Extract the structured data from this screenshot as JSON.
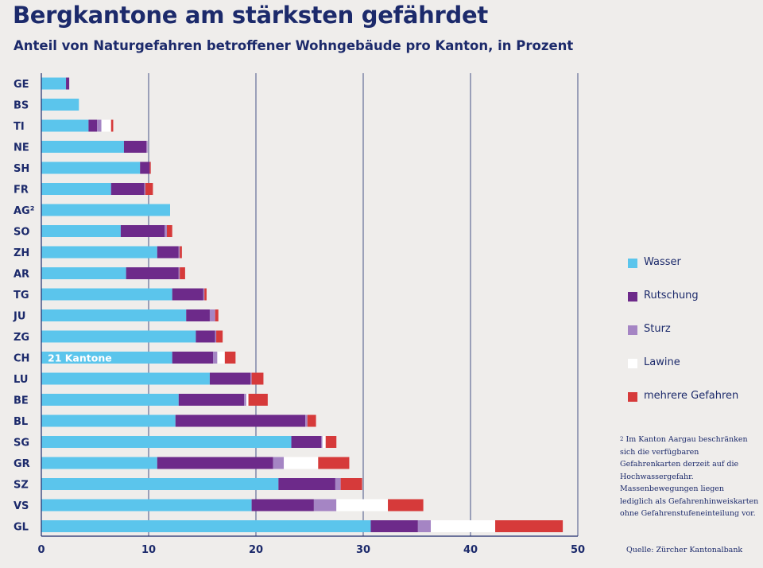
{
  "header": {
    "title": "Bergkantone am stärksten gefährdet",
    "subtitle": "Anteil von Naturgefahren betroffener Wohngebäude pro Kanton, in Prozent"
  },
  "colors": {
    "wasser": "#5bc5ec",
    "rutschung": "#6d2a8a",
    "sturz": "#a585c4",
    "lawine": "#ffffff",
    "mehrere": "#d63a3a",
    "text": "#1c2a6b",
    "grid": "#1c2a6b",
    "background": "#efedeb"
  },
  "legend": [
    {
      "key": "wasser",
      "label": "Wasser"
    },
    {
      "key": "rutschung",
      "label": "Rutschung"
    },
    {
      "key": "sturz",
      "label": "Sturz"
    },
    {
      "key": "lawine",
      "label": "Lawine"
    },
    {
      "key": "mehrere",
      "label": "mehrere Gefahren"
    }
  ],
  "footnote": {
    "mark": "2",
    "text": "Im Kanton Aargau beschränken sich die verfügbaren Gefahrenkarten derzeit auf die Hochwassergefahr. Massenbewegungen liegen lediglich als Gefahrenhinweiskarten ohne Gefahrenstufeneinteilung vor."
  },
  "source": "Quelle:  Zürcher Kantonalbank",
  "chart_data": {
    "type": "bar",
    "orientation": "horizontal",
    "stacked": true,
    "xlim": [
      0,
      50
    ],
    "xticks": [
      0,
      10,
      20,
      30,
      40,
      50
    ],
    "grid": true,
    "legend_position": "right",
    "categories": [
      "GE",
      "BS",
      "TI",
      "NE",
      "SH",
      "FR",
      "AG²",
      "SO",
      "ZH",
      "AR",
      "TG",
      "JU",
      "ZG",
      "CH",
      "LU",
      "BE",
      "BL",
      "SG",
      "GR",
      "SZ",
      "VS",
      "GL"
    ],
    "highlight_category": "CH",
    "highlight_label": "21 Kantone",
    "series": [
      {
        "name": "Wasser",
        "key": "wasser",
        "values": [
          2.3,
          3.5,
          4.4,
          7.7,
          9.2,
          6.5,
          12.0,
          7.4,
          10.8,
          7.9,
          12.2,
          13.5,
          14.4,
          12.2,
          15.7,
          12.8,
          12.5,
          23.3,
          10.8,
          22.1,
          19.6,
          30.7
        ]
      },
      {
        "name": "Rutschung",
        "key": "rutschung",
        "values": [
          0.3,
          0.0,
          0.8,
          2.1,
          0.9,
          3.1,
          0.0,
          4.1,
          2.0,
          4.9,
          2.9,
          2.2,
          1.8,
          3.8,
          3.8,
          6.1,
          12.1,
          2.8,
          10.8,
          5.3,
          5.8,
          4.4
        ]
      },
      {
        "name": "Sturz",
        "key": "sturz",
        "values": [
          0.0,
          0.0,
          0.4,
          0.1,
          0.0,
          0.1,
          0.0,
          0.2,
          0.1,
          0.1,
          0.1,
          0.5,
          0.1,
          0.4,
          0.1,
          0.2,
          0.2,
          0.1,
          1.0,
          0.5,
          2.1,
          1.2
        ]
      },
      {
        "name": "Lawine",
        "key": "lawine",
        "values": [
          0.0,
          0.0,
          0.9,
          0.0,
          0.0,
          0.0,
          0.0,
          0.0,
          0.0,
          0.0,
          0.0,
          0.0,
          0.0,
          0.7,
          0.0,
          0.2,
          0.0,
          0.3,
          3.2,
          0.0,
          4.8,
          6.0
        ]
      },
      {
        "name": "mehrere Gefahren",
        "key": "mehrere",
        "values": [
          0.0,
          0.0,
          0.2,
          0.0,
          0.1,
          0.7,
          0.0,
          0.5,
          0.2,
          0.5,
          0.2,
          0.3,
          0.6,
          1.0,
          1.1,
          1.8,
          0.8,
          1.0,
          2.9,
          2.0,
          3.3,
          6.3
        ]
      }
    ]
  }
}
